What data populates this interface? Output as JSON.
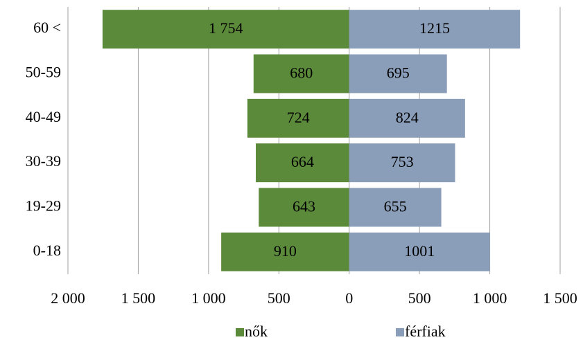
{
  "chart_data": {
    "type": "pyramid",
    "categories": [
      "60 <",
      "50-59",
      "40-49",
      "30-39",
      "19-29",
      "0-18"
    ],
    "series": [
      {
        "name": "nők",
        "color": "#5b8a3a",
        "values": [
          1754,
          680,
          724,
          664,
          643,
          910
        ],
        "value_labels": [
          "1 754",
          "680",
          "724",
          "664",
          "643",
          "910"
        ]
      },
      {
        "name": "férfiak",
        "color": "#8a9eb9",
        "values": [
          1215,
          695,
          824,
          753,
          655,
          1001
        ]
      }
    ],
    "xlim": [
      -2000,
      1500
    ],
    "xticks": [
      {
        "value": -2000,
        "label": "2 000"
      },
      {
        "value": -1500,
        "label": "1 500"
      },
      {
        "value": -1000,
        "label": "1 000"
      },
      {
        "value": -500,
        "label": "500"
      },
      0,
      {
        "value": 500,
        "label": "500"
      },
      {
        "value": 1000,
        "label": "1 000"
      },
      {
        "value": 1500,
        "label": "1 500"
      }
    ],
    "grid": true,
    "legend": "bottom"
  }
}
